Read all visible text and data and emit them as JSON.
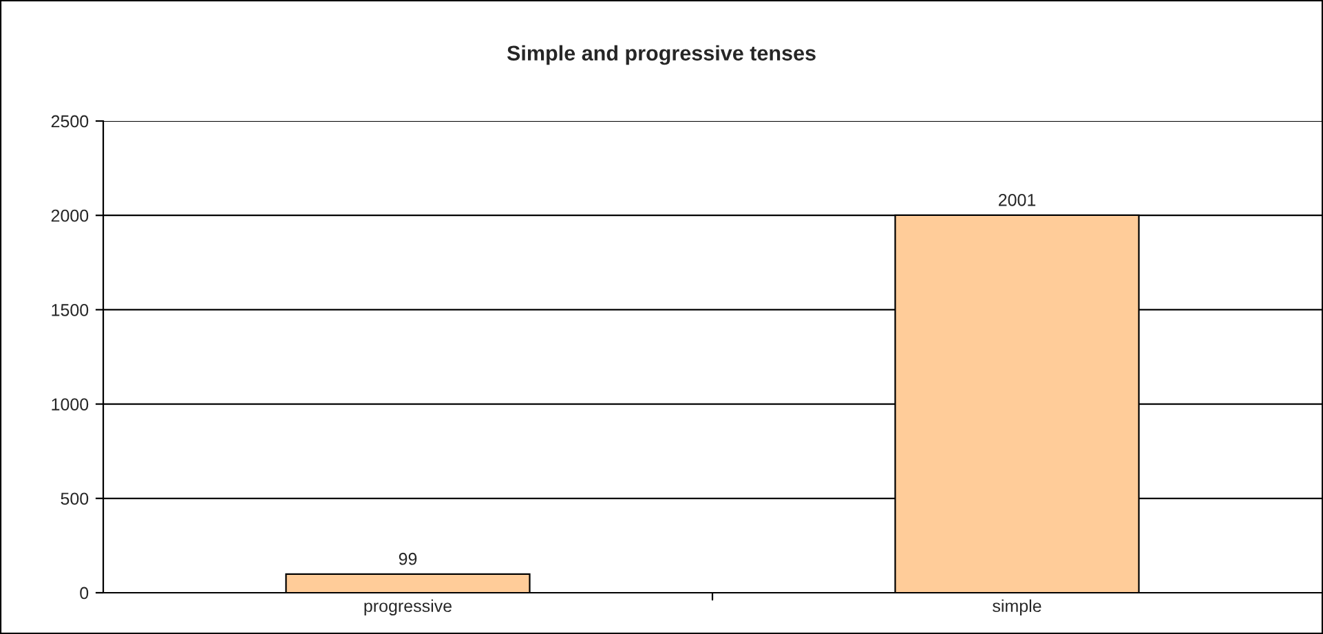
{
  "chart_data": {
    "type": "bar",
    "title": "Simple and progressive tenses",
    "categories": [
      "progressive",
      "simple"
    ],
    "values": [
      99,
      2001
    ],
    "color": "#ffcc99",
    "ylim": [
      0,
      2500
    ],
    "yticks": [
      0,
      500,
      1000,
      1500,
      2000,
      2500
    ],
    "grid": "y",
    "data_labels": true
  }
}
